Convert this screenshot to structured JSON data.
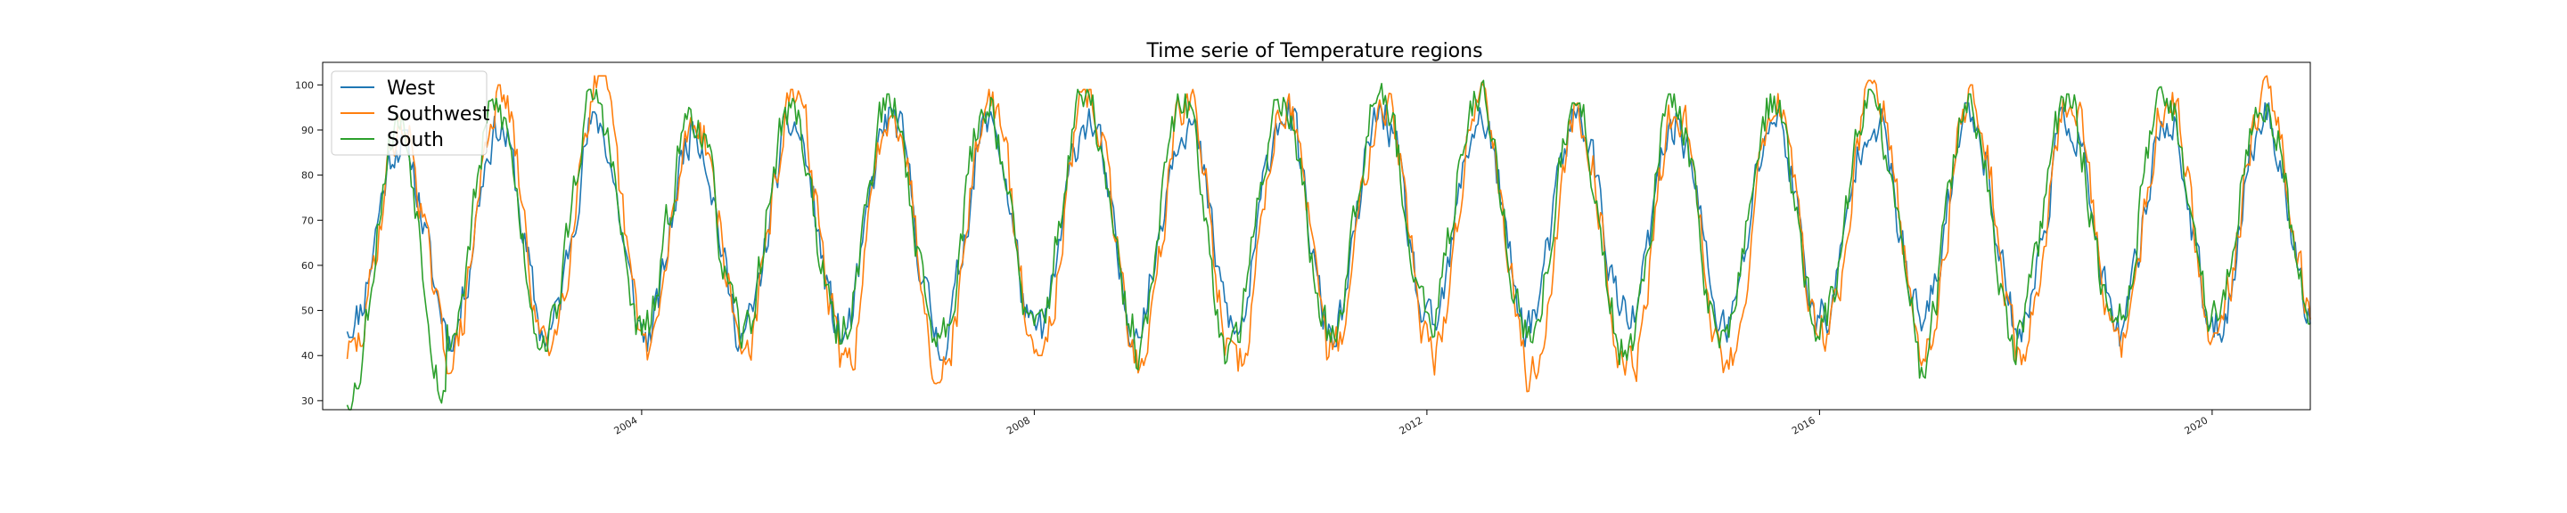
{
  "chart_data": {
    "type": "line",
    "title": "Time serie of Temperature regions",
    "xlabel": "",
    "ylabel": "",
    "x_range": [
      2000.75,
      2021.0
    ],
    "ylim": [
      28,
      105
    ],
    "y_ticks": [
      30,
      40,
      50,
      60,
      70,
      80,
      90,
      100
    ],
    "x_ticks": [
      {
        "value": 2004,
        "label": "2004"
      },
      {
        "value": 2008,
        "label": "2008"
      },
      {
        "value": 2012,
        "label": "2012"
      },
      {
        "value": 2016,
        "label": "2016"
      },
      {
        "value": 2020,
        "label": "2020"
      }
    ],
    "legend_position": "top-left",
    "grid": false,
    "sampling": "weekly",
    "series": [
      {
        "name": "West",
        "color": "#1f77b4",
        "start": 2001.0,
        "end": 2021.0,
        "min_values": [
          47,
          44,
          45,
          44,
          45,
          44,
          42,
          45,
          47,
          44,
          45,
          45,
          48,
          46,
          46,
          48,
          47,
          46,
          44,
          46
        ],
        "max_values": [
          88,
          91,
          92,
          91,
          91,
          93,
          92,
          93,
          93,
          95,
          94,
          93,
          93,
          92,
          93,
          94,
          94,
          93,
          93,
          94
        ]
      },
      {
        "name": "Southwest",
        "color": "#ff7f0e",
        "start": 2001.0,
        "end": 2021.0,
        "min_values": [
          40,
          39,
          43,
          42,
          42,
          36,
          37,
          43,
          38,
          37,
          42,
          38,
          35,
          36,
          38,
          44,
          40,
          41,
          41,
          48
        ],
        "max_values": [
          91,
          98,
          100,
          93,
          97,
          96,
          97,
          97,
          97,
          97,
          98,
          99,
          94,
          95,
          97,
          99,
          98,
          97,
          99,
          100
        ]
      },
      {
        "name": "South",
        "color": "#2ca02c",
        "start": 2001.0,
        "end": 2021.0,
        "min_values": [
          31,
          43,
          44,
          45,
          44,
          45,
          43,
          46,
          39,
          44,
          46,
          47,
          41,
          42,
          45,
          46,
          38,
          46,
          48,
          50
        ],
        "max_values": [
          92,
          95,
          97,
          94,
          95,
          96,
          96,
          97,
          96,
          98,
          101,
          99,
          94,
          96,
          96,
          97,
          96,
          96,
          98,
          98
        ]
      }
    ]
  }
}
